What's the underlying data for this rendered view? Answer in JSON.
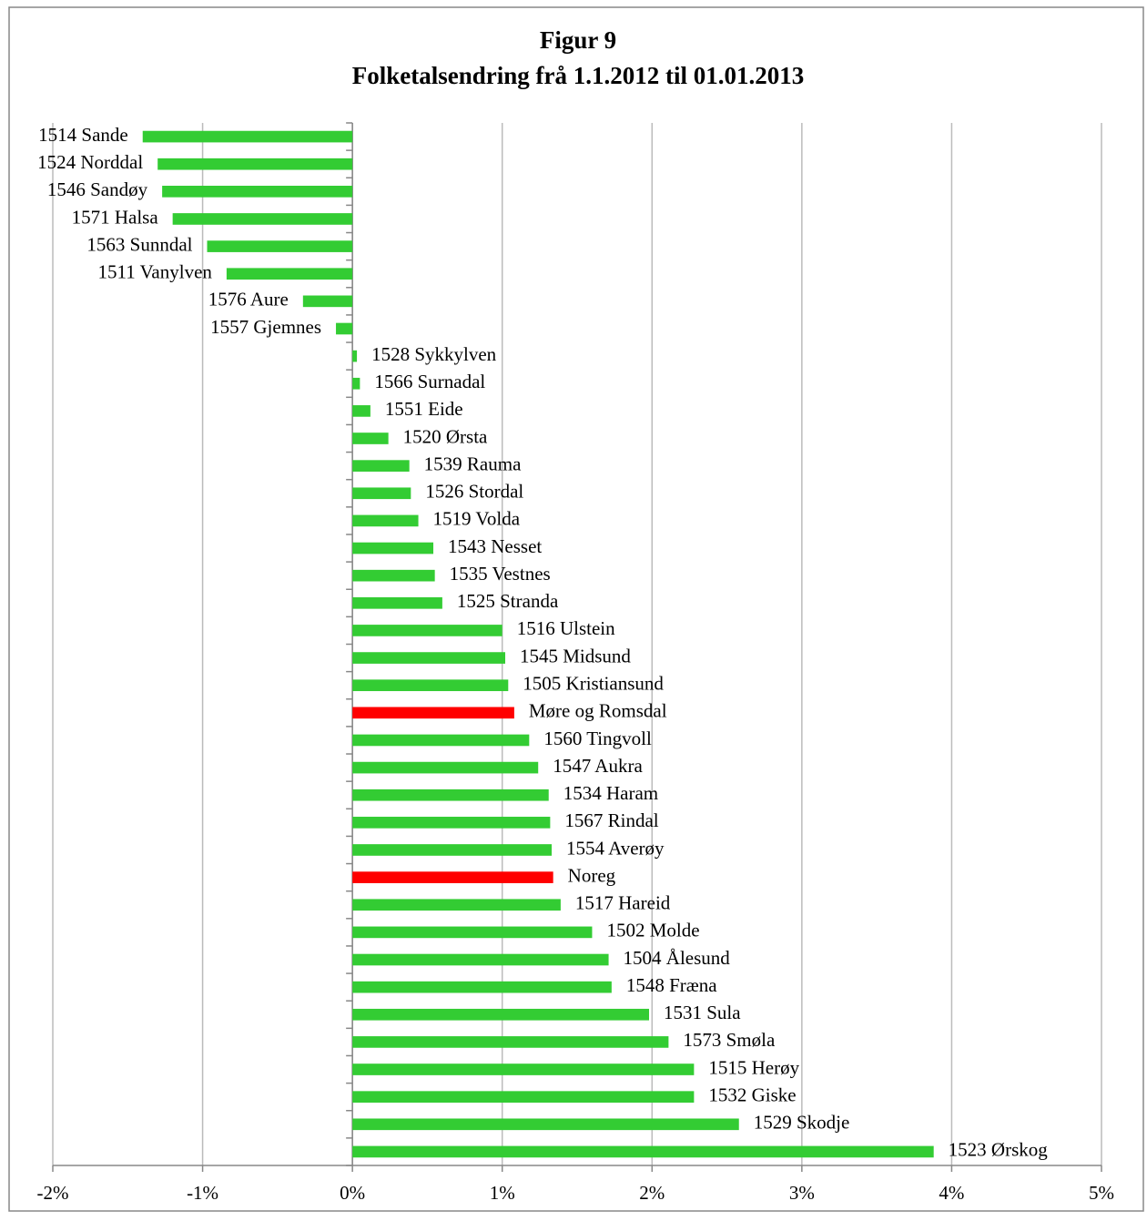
{
  "chart_data": {
    "type": "bar",
    "orientation": "horizontal",
    "title": "Figur 9",
    "subtitle": "Folketalsendring frå 1.1.2012 til 01.01.2013",
    "categories": [
      "1514 Sande",
      "1524 Norddal",
      "1546 Sandøy",
      "1571 Halsa",
      "1563 Sunndal",
      "1511 Vanylven",
      "1576 Aure",
      "1557 Gjemnes",
      "1528 Sykkylven",
      "1566 Surnadal",
      "1551 Eide",
      "1520 Ørsta",
      "1539 Rauma",
      "1526 Stordal",
      "1519 Volda",
      "1543 Nesset",
      "1535 Vestnes",
      "1525 Stranda",
      "1516 Ulstein",
      "1545 Midsund",
      "1505 Kristiansund",
      "Møre og Romsdal",
      "1560 Tingvoll",
      "1547 Aukra",
      "1534 Haram",
      "1567 Rindal",
      "1554 Averøy",
      "Noreg",
      "1517 Hareid",
      "1502 Molde",
      "1504 Ålesund",
      "1548 Fræna",
      "1531 Sula",
      "1573 Smøla",
      "1515 Herøy",
      "1532 Giske",
      "1529 Skodje",
      "1523 Ørskog"
    ],
    "values": [
      -1.4,
      -1.3,
      -1.27,
      -1.2,
      -0.97,
      -0.84,
      -0.33,
      -0.11,
      0.03,
      0.05,
      0.12,
      0.24,
      0.38,
      0.39,
      0.44,
      0.54,
      0.55,
      0.6,
      1.0,
      1.02,
      1.04,
      1.08,
      1.18,
      1.24,
      1.31,
      1.32,
      1.33,
      1.34,
      1.39,
      1.6,
      1.71,
      1.73,
      1.98,
      2.11,
      2.28,
      2.28,
      2.58,
      3.88
    ],
    "colors": [
      "#33cc33",
      "#33cc33",
      "#33cc33",
      "#33cc33",
      "#33cc33",
      "#33cc33",
      "#33cc33",
      "#33cc33",
      "#33cc33",
      "#33cc33",
      "#33cc33",
      "#33cc33",
      "#33cc33",
      "#33cc33",
      "#33cc33",
      "#33cc33",
      "#33cc33",
      "#33cc33",
      "#33cc33",
      "#33cc33",
      "#33cc33",
      "#ff0000",
      "#33cc33",
      "#33cc33",
      "#33cc33",
      "#33cc33",
      "#33cc33",
      "#ff0000",
      "#33cc33",
      "#33cc33",
      "#33cc33",
      "#33cc33",
      "#33cc33",
      "#33cc33",
      "#33cc33",
      "#33cc33",
      "#33cc33",
      "#33cc33"
    ],
    "xlim": [
      -2,
      5
    ],
    "xticks": [
      {
        "value": -2,
        "label": "-2%"
      },
      {
        "value": -1,
        "label": "-1%"
      },
      {
        "value": 0,
        "label": "0%"
      },
      {
        "value": 1,
        "label": "1%"
      },
      {
        "value": 2,
        "label": "2%"
      },
      {
        "value": 3,
        "label": "3%"
      },
      {
        "value": 4,
        "label": "4%"
      },
      {
        "value": 5,
        "label": "5%"
      }
    ],
    "grid": true
  }
}
